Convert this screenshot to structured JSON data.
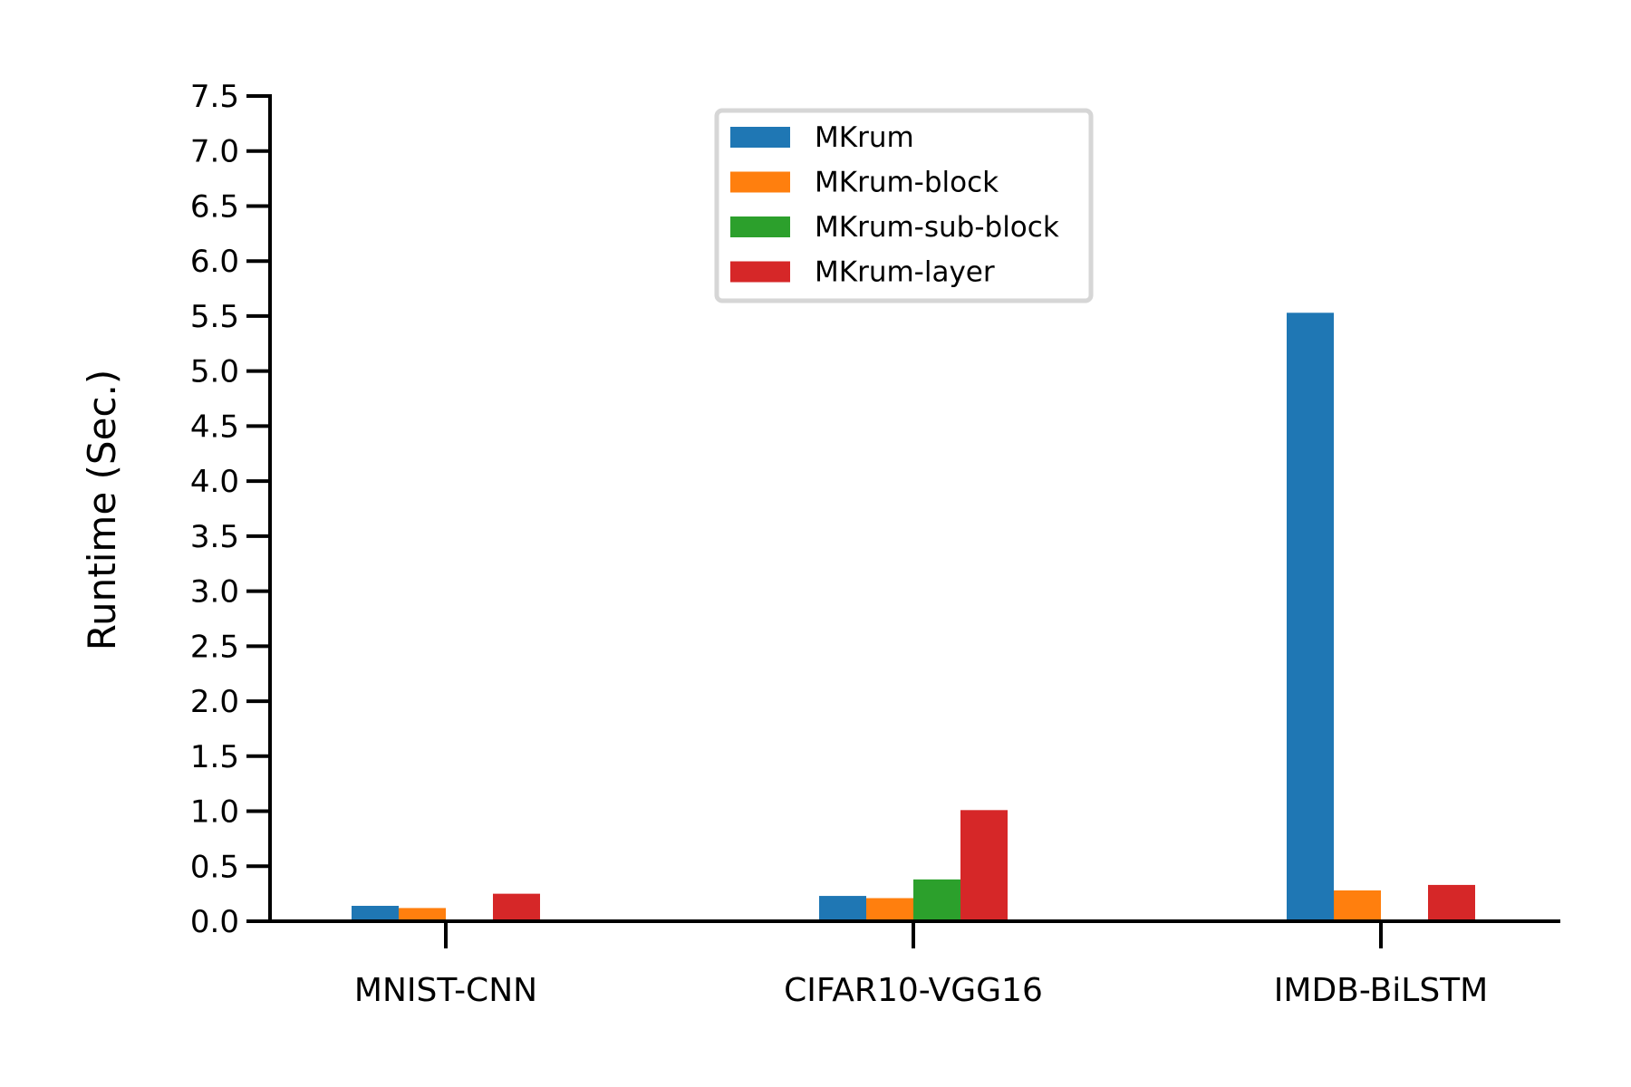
{
  "chart_data": {
    "type": "bar",
    "title": "",
    "xlabel": "",
    "ylabel": "Runtime (Sec.)",
    "ylim": [
      0,
      7.5
    ],
    "yticks": [
      "0.0",
      "0.5",
      "1.0",
      "1.5",
      "2.0",
      "2.5",
      "3.0",
      "3.5",
      "4.0",
      "4.5",
      "5.0",
      "5.5",
      "6.0",
      "6.5",
      "7.0",
      "7.5"
    ],
    "categories": [
      "MNIST-CNN",
      "CIFAR10-VGG16",
      "IMDB-BiLSTM"
    ],
    "series": [
      {
        "name": "MKrum",
        "color": "#1f77b4",
        "values": [
          0.14,
          0.23,
          5.53
        ]
      },
      {
        "name": "MKrum-block",
        "color": "#ff7f0e",
        "values": [
          0.12,
          0.21,
          0.28
        ]
      },
      {
        "name": "MKrum-sub-block",
        "color": "#2ca02c",
        "values": [
          null,
          0.38,
          null
        ]
      },
      {
        "name": "MKrum-layer",
        "color": "#d62728",
        "values": [
          0.25,
          1.01,
          0.33
        ]
      }
    ],
    "grid": false,
    "legend_position": "top-center"
  }
}
